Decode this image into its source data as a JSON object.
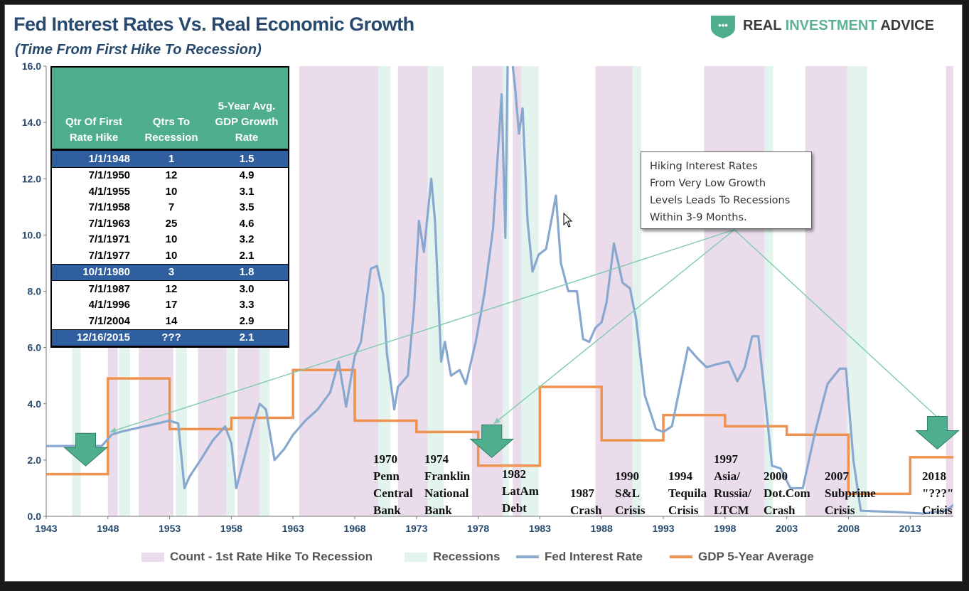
{
  "header": {
    "title": "Fed Interest Rates Vs. Real Economic Growth",
    "subtitle": "(Time From First Hike To Recession)",
    "brand_name_1": "REAL ",
    "brand_name_2": "INVESTMENT ",
    "brand_name_3": "ADVICE",
    "brand_dots": "•••"
  },
  "colors": {
    "hike_band": "#eadcea",
    "recession_band": "#e3f3ee",
    "fed_line": "#88a8cf",
    "gdp_line": "#f0924f",
    "arrow_fill": "#4fae8e",
    "axis_text": "#27496d",
    "table_header": "#4fae8e",
    "table_highlight": "#2f5f9f"
  },
  "table": {
    "headers": [
      "Qtr Of First Rate Hike",
      "Qtrs To Recession",
      "5-Year Avg. GDP Growth Rate"
    ],
    "header_lines": [
      [
        "Qtr Of First",
        "Rate Hike"
      ],
      [
        "Qtrs To",
        "Recession"
      ],
      [
        "5-Year Avg.",
        "GDP Growth",
        "Rate"
      ]
    ],
    "rows": [
      {
        "date": "1/1/1948",
        "qtrs": "1",
        "gdp": "1.5",
        "highlight": true
      },
      {
        "date": "7/1/1950",
        "qtrs": "12",
        "gdp": "4.9",
        "highlight": false
      },
      {
        "date": "4/1/1955",
        "qtrs": "10",
        "gdp": "3.1",
        "highlight": false
      },
      {
        "date": "7/1/1958",
        "qtrs": "7",
        "gdp": "3.5",
        "highlight": false
      },
      {
        "date": "7/1/1963",
        "qtrs": "25",
        "gdp": "4.6",
        "highlight": false
      },
      {
        "date": "7/1/1971",
        "qtrs": "10",
        "gdp": "3.2",
        "highlight": false
      },
      {
        "date": "7/1/1977",
        "qtrs": "10",
        "gdp": "2.1",
        "highlight": false
      },
      {
        "date": "10/1/1980",
        "qtrs": "3",
        "gdp": "1.8",
        "highlight": true
      },
      {
        "date": "7/1/1987",
        "qtrs": "12",
        "gdp": "3.0",
        "highlight": false
      },
      {
        "date": "4/1/1996",
        "qtrs": "17",
        "gdp": "3.3",
        "highlight": false
      },
      {
        "date": "7/1/2004",
        "qtrs": "14",
        "gdp": "2.9",
        "highlight": false
      },
      {
        "date": "12/16/2015",
        "qtrs": "???",
        "gdp": "2.1",
        "highlight": true
      }
    ]
  },
  "callout": {
    "lines": [
      "Hiking Interest Rates",
      "From Very Low Growth",
      "Levels Leads To Recessions",
      "Within 3-9 Months."
    ]
  },
  "events": [
    {
      "lines": [
        "1970",
        "Penn",
        "Central",
        "Bank"
      ]
    },
    {
      "lines": [
        "1974",
        "Franklin",
        "National",
        "Bank"
      ]
    },
    {
      "lines": [
        "1982",
        "LatAm",
        "Debt"
      ]
    },
    {
      "lines": [
        "1987",
        "Crash"
      ]
    },
    {
      "lines": [
        "1990",
        "S&L",
        "Crisis"
      ]
    },
    {
      "lines": [
        "1994",
        "Tequila",
        "Crisis"
      ]
    },
    {
      "lines": [
        "1997",
        "Asia/",
        "Russia/",
        "LTCM"
      ]
    },
    {
      "lines": [
        "2000",
        "Dot.Com",
        "Crash"
      ]
    },
    {
      "lines": [
        "2007",
        "Subprime",
        "Crisis"
      ]
    },
    {
      "lines": [
        "2018",
        "\"???\"",
        "Crisis"
      ]
    }
  ],
  "legend": {
    "hike": "Count - 1st Rate Hike To Recession",
    "recession": "Recessions",
    "fed": "Fed Interest Rate",
    "gdp": "GDP 5-Year Average"
  },
  "chart_data": {
    "type": "line",
    "title": "Fed Interest Rates Vs. Real Economic Growth",
    "subtitle": "(Time From First Hike To Recession)",
    "xlabel": "",
    "ylabel": "",
    "xlim": [
      1943,
      2016.5
    ],
    "ylim": [
      0,
      16
    ],
    "x_ticks": [
      1943,
      1948,
      1953,
      1958,
      1963,
      1968,
      1973,
      1978,
      1983,
      1988,
      1993,
      1998,
      2003,
      2008,
      2013
    ],
    "y_ticks": [
      0,
      2,
      4,
      6,
      8,
      10,
      12,
      14,
      16
    ],
    "y_tick_labels": [
      "0.0",
      "2.0",
      "4.0",
      "6.0",
      "8.0",
      "10.0",
      "12.0",
      "14.0",
      "16.0"
    ],
    "grid": false,
    "legend_position": "bottom",
    "hike_to_recession_bands": [
      [
        1948.0,
        1948.8
      ],
      [
        1950.5,
        1953.3
      ],
      [
        1955.3,
        1957.6
      ],
      [
        1958.5,
        1960.3
      ],
      [
        1963.5,
        1969.9
      ],
      [
        1971.5,
        1973.9
      ],
      [
        1977.5,
        1980.0
      ],
      [
        1980.8,
        1981.5
      ],
      [
        1987.5,
        1990.5
      ],
      [
        1996.3,
        2001.2
      ],
      [
        2004.5,
        2007.9
      ],
      [
        2015.9,
        2016.5
      ]
    ],
    "recession_bands": [
      [
        1945.1,
        1945.8
      ],
      [
        1948.9,
        1949.8
      ],
      [
        1953.5,
        1954.4
      ],
      [
        1957.6,
        1958.3
      ],
      [
        1960.3,
        1961.1
      ],
      [
        1969.9,
        1970.9
      ],
      [
        1973.9,
        1975.2
      ],
      [
        1980.0,
        1980.5
      ],
      [
        1981.5,
        1982.9
      ],
      [
        1990.5,
        1991.2
      ],
      [
        2001.2,
        2001.9
      ],
      [
        2007.9,
        2009.5
      ]
    ],
    "series": [
      {
        "name": "Fed Interest Rate",
        "x": [
          1943,
          1947.5,
          1948.3,
          1949,
          1950,
          1951.5,
          1953,
          1953.7,
          1954.2,
          1954.6,
          1955.5,
          1956.5,
          1957.5,
          1958,
          1958.4,
          1959,
          1959.8,
          1960.3,
          1960.8,
          1961.5,
          1962.3,
          1963,
          1964,
          1965,
          1966,
          1966.7,
          1967.3,
          1968,
          1968.5,
          1969.3,
          1969.8,
          1970.3,
          1970.6,
          1971.2,
          1971.5,
          1972.3,
          1972.8,
          1973.2,
          1973.6,
          1974.2,
          1974.5,
          1975,
          1975.3,
          1975.8,
          1976.5,
          1977,
          1977.8,
          1978.5,
          1979.2,
          1979.9,
          1980.2,
          1980.4,
          1980.8,
          1981,
          1981.3,
          1981.6,
          1982,
          1982.4,
          1982.9,
          1983.5,
          1984.3,
          1984.7,
          1985.3,
          1986,
          1986.5,
          1987,
          1987.5,
          1988,
          1988.4,
          1989,
          1989.7,
          1990.3,
          1990.8,
          1991.5,
          1992.4,
          1993,
          1993.7,
          1994.3,
          1995,
          1995.8,
          1996.5,
          1997.3,
          1998.3,
          1999,
          1999.6,
          2000.2,
          2000.7,
          2001.3,
          2001.8,
          2002.5,
          2003.3,
          2004.3,
          2005.3,
          2006.3,
          2007.3,
          2007.8,
          2008.4,
          2009,
          2010,
          2012,
          2014,
          2015.9,
          2016.5
        ],
        "values": [
          2.5,
          2.5,
          2.9,
          3.0,
          3.1,
          3.25,
          3.4,
          3.3,
          1.0,
          1.4,
          2.0,
          2.7,
          3.2,
          2.6,
          1.0,
          2.0,
          3.3,
          4.0,
          3.8,
          2.0,
          2.4,
          2.9,
          3.4,
          3.8,
          4.4,
          5.5,
          3.9,
          5.7,
          6.2,
          8.8,
          8.9,
          7.9,
          5.8,
          3.8,
          4.6,
          5.0,
          7.4,
          10.5,
          9.4,
          12.0,
          10.5,
          5.5,
          6.2,
          5.0,
          5.2,
          4.7,
          6.2,
          7.9,
          10.2,
          15.0,
          9.9,
          16.5,
          16.0,
          15.2,
          13.6,
          14.5,
          10.5,
          8.7,
          9.3,
          9.5,
          11.4,
          9.0,
          8.0,
          8.0,
          6.3,
          6.2,
          6.7,
          6.9,
          7.6,
          9.7,
          8.3,
          8.1,
          7.0,
          4.3,
          3.1,
          3.0,
          3.2,
          4.5,
          6.0,
          5.6,
          5.3,
          5.4,
          5.5,
          4.8,
          5.3,
          6.4,
          6.4,
          4.0,
          1.8,
          1.7,
          1.0,
          1.0,
          3.0,
          4.7,
          5.25,
          5.25,
          2.0,
          0.2,
          0.18,
          0.15,
          0.1,
          0.2,
          0.4
        ]
      },
      {
        "name": "GDP 5-Year Average",
        "x": [
          1943,
          1948,
          1948,
          1953,
          1953,
          1958,
          1958,
          1963,
          1963,
          1968,
          1968,
          1973,
          1973,
          1978,
          1978,
          1983,
          1983,
          1988,
          1988,
          1993,
          1993,
          1998,
          1998,
          2003,
          2003,
          2008,
          2008,
          2013,
          2013,
          2016.5
        ],
        "values": [
          1.5,
          1.5,
          4.9,
          4.9,
          3.1,
          3.1,
          3.5,
          3.5,
          5.2,
          5.2,
          3.4,
          3.4,
          3.0,
          3.0,
          1.8,
          1.8,
          4.6,
          4.6,
          2.7,
          2.7,
          3.6,
          3.6,
          3.2,
          3.2,
          2.9,
          2.9,
          0.8,
          0.8,
          2.1,
          2.1
        ]
      }
    ],
    "annotations": [
      {
        "text": "Hiking Interest Rates From Very Low Growth Levels Leads To Recessions Within 3-9 Months.",
        "arrows_to": [
          [
            1948.2,
            3.0
          ],
          [
            1979.3,
            3.3
          ],
          [
            2015.5,
            3.4
          ]
        ]
      }
    ],
    "down_arrow_markers": [
      [
        1946.2,
        2.8
      ],
      [
        1979.1,
        3.1
      ],
      [
        2015.2,
        3.4
      ]
    ]
  }
}
